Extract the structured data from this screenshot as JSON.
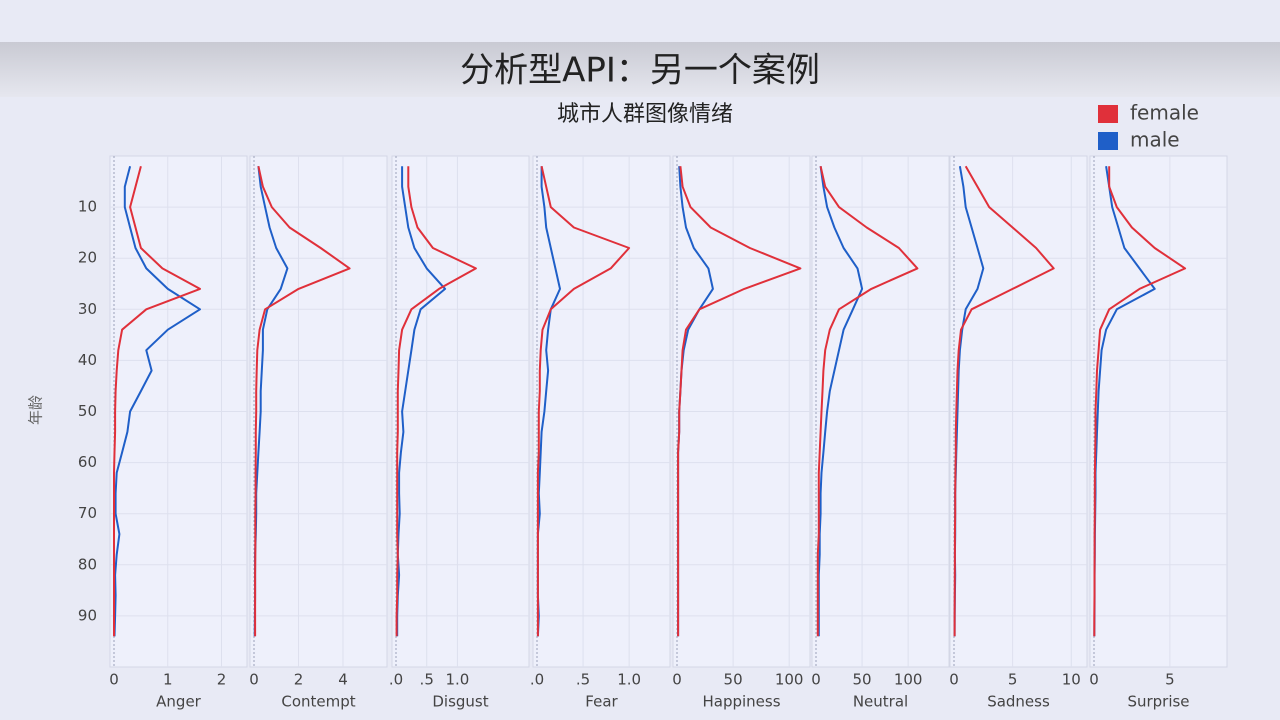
{
  "slide_title": "分析型API：另一个案例",
  "chart_data": {
    "type": "line",
    "title": "城市人群图像情绪",
    "y_label": "年龄",
    "ylim": [
      0,
      100
    ],
    "yticks": [
      10,
      20,
      30,
      40,
      50,
      60,
      70,
      80,
      90
    ],
    "y": [
      2,
      6,
      10,
      14,
      18,
      22,
      26,
      30,
      34,
      38,
      42,
      46,
      50,
      54,
      58,
      62,
      66,
      70,
      74,
      78,
      82,
      86,
      90,
      94
    ],
    "legend": "top-right",
    "panels": [
      {
        "x_label": "Anger",
        "xlim": [
          0,
          2.4
        ],
        "xticks": [
          0,
          1,
          2
        ],
        "series": [
          {
            "name": "female",
            "color": "#e0303a",
            "values": [
              0.5,
              0.4,
              0.3,
              0.4,
              0.5,
              0.9,
              1.6,
              0.6,
              0.15,
              0.08,
              0.05,
              0.03,
              0.02,
              0.02,
              0.01,
              0,
              0,
              0,
              0,
              0,
              0,
              0,
              0,
              0
            ]
          },
          {
            "name": "male",
            "color": "#1f5fc8",
            "values": [
              0.3,
              0.2,
              0.2,
              0.3,
              0.4,
              0.6,
              1.0,
              1.6,
              1.0,
              0.6,
              0.7,
              0.5,
              0.3,
              0.25,
              0.15,
              0.05,
              0.03,
              0.03,
              0.1,
              0.05,
              0.02,
              0.03,
              0.02,
              0.01
            ]
          }
        ]
      },
      {
        "x_label": "Contempt",
        "xlim": [
          0,
          5.8
        ],
        "xticks": [
          0,
          2,
          4
        ],
        "series": [
          {
            "name": "female",
            "color": "#e0303a",
            "values": [
              0.2,
              0.4,
              0.8,
              1.6,
              3.0,
              4.3,
              2.0,
              0.5,
              0.25,
              0.15,
              0.12,
              0.1,
              0.1,
              0.08,
              0.08,
              0.07,
              0.07,
              0.06,
              0.06,
              0.06,
              0.05,
              0.05,
              0.05,
              0.05
            ]
          },
          {
            "name": "male",
            "color": "#1f5fc8",
            "values": [
              0.2,
              0.3,
              0.5,
              0.7,
              1.0,
              1.5,
              1.2,
              0.6,
              0.4,
              0.4,
              0.35,
              0.3,
              0.3,
              0.25,
              0.2,
              0.15,
              0.1,
              0.1,
              0.08,
              0.05,
              0.05,
              0.05,
              0.04,
              0.03
            ]
          }
        ]
      },
      {
        "x_label": "Disgust",
        "xlim": [
          0,
          2.1
        ],
        "xticks": [
          {
            "value": 0,
            "label": ".0"
          },
          {
            "value": 0.5,
            "label": ".5"
          },
          {
            "value": 1,
            "label": "1.0"
          }
        ],
        "series": [
          {
            "name": "female",
            "color": "#e0303a",
            "values": [
              0.2,
              0.2,
              0.25,
              0.35,
              0.6,
              1.3,
              0.7,
              0.25,
              0.1,
              0.05,
              0.04,
              0.03,
              0.03,
              0.03,
              0.02,
              0.02,
              0.02,
              0.02,
              0.02,
              0.03,
              0.02,
              0.02,
              0.01,
              0.01
            ]
          },
          {
            "name": "male",
            "color": "#1f5fc8",
            "values": [
              0.1,
              0.1,
              0.15,
              0.2,
              0.3,
              0.5,
              0.8,
              0.4,
              0.3,
              0.25,
              0.2,
              0.15,
              0.1,
              0.12,
              0.08,
              0.05,
              0.05,
              0.06,
              0.04,
              0.03,
              0.05,
              0.03,
              0.02,
              0.02
            ]
          }
        ]
      },
      {
        "x_label": "Fear",
        "xlim": [
          0,
          1.4
        ],
        "xticks": [
          {
            "value": 0,
            "label": ".0"
          },
          {
            "value": 0.5,
            "label": ".5"
          },
          {
            "value": 1,
            "label": "1.0"
          }
        ],
        "series": [
          {
            "name": "female",
            "color": "#e0303a",
            "values": [
              0.05,
              0.1,
              0.15,
              0.4,
              1.0,
              0.8,
              0.4,
              0.15,
              0.06,
              0.04,
              0.03,
              0.03,
              0.02,
              0.02,
              0.02,
              0.01,
              0.01,
              0.01,
              0.01,
              0.01,
              0.01,
              0.01,
              0.01,
              0.01
            ]
          },
          {
            "name": "male",
            "color": "#1f5fc8",
            "values": [
              0.05,
              0.05,
              0.08,
              0.1,
              0.15,
              0.2,
              0.25,
              0.15,
              0.12,
              0.1,
              0.12,
              0.1,
              0.08,
              0.05,
              0.04,
              0.03,
              0.02,
              0.03,
              0.01,
              0.01,
              0.01,
              0.01,
              0.02,
              0.01
            ]
          }
        ]
      },
      {
        "x_label": "Happiness",
        "xlim": [
          0,
          115
        ],
        "xticks": [
          0,
          50,
          100
        ],
        "series": [
          {
            "name": "female",
            "color": "#e0303a",
            "values": [
              3,
              5,
              12,
              30,
              65,
              110,
              60,
              20,
              8,
              5,
              4,
              3,
              2,
              2,
              1,
              1,
              1,
              1,
              1,
              1,
              1,
              1,
              1,
              1
            ]
          },
          {
            "name": "male",
            "color": "#1f5fc8",
            "values": [
              2,
              3,
              5,
              8,
              15,
              28,
              32,
              20,
              10,
              6,
              4,
              3,
              2,
              2,
              1,
              1,
              1,
              1,
              1,
              1,
              1,
              1,
              1,
              1
            ]
          }
        ]
      },
      {
        "x_label": "Neutral",
        "xlim": [
          0,
          140
        ],
        "xticks": [
          0,
          50,
          100
        ],
        "series": [
          {
            "name": "female",
            "color": "#e0303a",
            "values": [
              5,
              10,
              25,
              55,
              90,
              110,
              60,
              25,
              15,
              10,
              8,
              7,
              6,
              5,
              4,
              3,
              3,
              3,
              3,
              2,
              2,
              2,
              2,
              2
            ]
          },
          {
            "name": "male",
            "color": "#1f5fc8",
            "values": [
              5,
              8,
              12,
              20,
              30,
              45,
              50,
              40,
              30,
              25,
              20,
              15,
              12,
              10,
              8,
              6,
              5,
              5,
              4,
              4,
              3,
              3,
              3,
              3
            ]
          }
        ]
      },
      {
        "x_label": "Sadness",
        "xlim": [
          0,
          11
        ],
        "xticks": [
          0,
          5,
          10
        ],
        "series": [
          {
            "name": "female",
            "color": "#e0303a",
            "values": [
              1,
              2,
              3,
              5,
              7,
              8.5,
              5,
              1.5,
              0.6,
              0.4,
              0.3,
              0.25,
              0.2,
              0.15,
              0.15,
              0.12,
              0.1,
              0.1,
              0.08,
              0.08,
              0.07,
              0.06,
              0.05,
              0.05
            ]
          },
          {
            "name": "male",
            "color": "#1f5fc8",
            "values": [
              0.5,
              0.8,
              1,
              1.5,
              2,
              2.5,
              2,
              1,
              0.7,
              0.5,
              0.4,
              0.35,
              0.3,
              0.25,
              0.2,
              0.15,
              0.1,
              0.1,
              0.1,
              0.08,
              0.1,
              0.08,
              0.06,
              0.05
            ]
          }
        ]
      },
      {
        "x_label": "Surprise",
        "xlim": [
          0,
          8.5
        ],
        "xticks": [
          0,
          5
        ],
        "series": [
          {
            "name": "female",
            "color": "#e0303a",
            "values": [
              1,
              1,
              1.5,
              2.5,
              4,
              6,
              3,
              1,
              0.4,
              0.3,
              0.2,
              0.15,
              0.1,
              0.1,
              0.08,
              0.06,
              0.05,
              0.05,
              0.04,
              0.04,
              0.03,
              0.03,
              0.02,
              0.02
            ]
          },
          {
            "name": "male",
            "color": "#1f5fc8",
            "values": [
              0.8,
              1,
              1.2,
              1.6,
              2,
              3,
              4,
              1.5,
              0.8,
              0.5,
              0.4,
              0.3,
              0.25,
              0.2,
              0.15,
              0.1,
              0.1,
              0.08,
              0.06,
              0.05,
              0.04,
              0.04,
              0.03,
              0.02
            ]
          }
        ]
      }
    ]
  }
}
